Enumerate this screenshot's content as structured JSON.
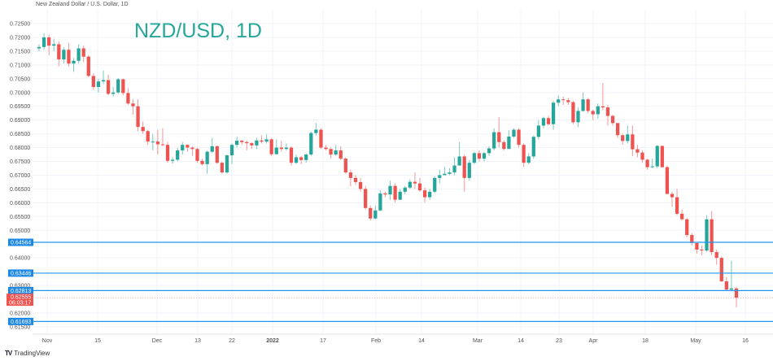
{
  "header": {
    "symbol_description": "New Zealand Dollar / U.S. Dollar, 1D"
  },
  "footer": {
    "brand": "TradingView",
    "logo_icon": "tradingview-logo-icon"
  },
  "chart_data": {
    "type": "candlestick",
    "title": "NZD/USD, 1D",
    "ylim": [
      0.6135,
      0.7275
    ],
    "grid": true,
    "y_ticks": [
      "0.72500",
      "0.72000",
      "0.71500",
      "0.71000",
      "0.70500",
      "0.70000",
      "0.69500",
      "0.69000",
      "0.68500",
      "0.68000",
      "0.67500",
      "0.67000",
      "0.66500",
      "0.66000",
      "0.65500",
      "0.65000",
      "0.64000",
      "0.63000",
      "0.62000",
      "0.61500"
    ],
    "x_ticks": [
      "Nov",
      "15",
      "Dec",
      "13",
      "22",
      "2022",
      "17",
      "Feb",
      "14",
      "Mar",
      "14",
      "23",
      "Apr",
      "18",
      "May",
      "16"
    ],
    "colors": {
      "up": "#26a69a",
      "down": "#ef5350",
      "level": "#2196f3",
      "title": "#26a69a"
    },
    "first_open": 0.716,
    "close": [
      0.7165,
      0.72,
      0.717,
      0.7175,
      0.712,
      0.7155,
      0.7105,
      0.7115,
      0.716,
      0.713,
      0.706,
      0.702,
      0.704,
      0.7045,
      0.6995,
      0.7,
      0.7048,
      0.6998,
      0.696,
      0.695,
      0.6875,
      0.686,
      0.6822,
      0.6822,
      0.6812,
      0.681,
      0.6752,
      0.6756,
      0.679,
      0.681,
      0.68,
      0.6795,
      0.6752,
      0.674,
      0.6785,
      0.6805,
      0.6745,
      0.671,
      0.6772,
      0.681,
      0.6825,
      0.682,
      0.6816,
      0.6808,
      0.6826,
      0.6822,
      0.683,
      0.6776,
      0.68,
      0.6795,
      0.68,
      0.6745,
      0.6765,
      0.6755,
      0.6775,
      0.6853,
      0.6865,
      0.68,
      0.6795,
      0.6775,
      0.679,
      0.676,
      0.671,
      0.669,
      0.6675,
      0.665,
      0.6581,
      0.6543,
      0.6572,
      0.6634,
      0.663,
      0.6661,
      0.6611,
      0.664,
      0.6655,
      0.6676,
      0.667,
      0.6645,
      0.662,
      0.664,
      0.669,
      0.67,
      0.6705,
      0.671,
      0.6735,
      0.6768,
      0.669,
      0.6745,
      0.678,
      0.676,
      0.678,
      0.6797,
      0.6856,
      0.682,
      0.6795,
      0.684,
      0.6865,
      0.681,
      0.6745,
      0.6768,
      0.6839,
      0.688,
      0.6907,
      0.6885,
      0.6963,
      0.6975,
      0.6972,
      0.6965,
      0.6892,
      0.6933,
      0.6975,
      0.6933,
      0.6921,
      0.695,
      0.6946,
      0.6915,
      0.6889,
      0.6845,
      0.6824,
      0.6848,
      0.6794,
      0.6782,
      0.6756,
      0.6729,
      0.6732,
      0.6806,
      0.6729,
      0.6632,
      0.662,
      0.656,
      0.654,
      0.6483,
      0.6454,
      0.643,
      0.6427,
      0.654,
      0.6421,
      0.64,
      0.6315,
      0.6285,
      0.6289,
      0.62555
    ],
    "high": [
      0.7175,
      0.7215,
      0.721,
      0.7195,
      0.7185,
      0.7165,
      0.718,
      0.7125,
      0.7175,
      0.717,
      0.7135,
      0.707,
      0.705,
      0.708,
      0.7065,
      0.702,
      0.7052,
      0.705,
      0.7015,
      0.6975,
      0.6975,
      0.6895,
      0.6865,
      0.685,
      0.6865,
      0.687,
      0.682,
      0.6765,
      0.68,
      0.682,
      0.6812,
      0.6805,
      0.68,
      0.676,
      0.679,
      0.6835,
      0.6808,
      0.675,
      0.6775,
      0.6815,
      0.684,
      0.6828,
      0.6825,
      0.682,
      0.6835,
      0.6845,
      0.6848,
      0.6835,
      0.683,
      0.6825,
      0.6815,
      0.6805,
      0.6775,
      0.677,
      0.678,
      0.6858,
      0.689,
      0.687,
      0.681,
      0.68,
      0.681,
      0.6805,
      0.6765,
      0.672,
      0.67,
      0.669,
      0.666,
      0.659,
      0.659,
      0.6645,
      0.664,
      0.668,
      0.667,
      0.665,
      0.666,
      0.6685,
      0.671,
      0.669,
      0.6655,
      0.665,
      0.6695,
      0.672,
      0.673,
      0.6725,
      0.6765,
      0.682,
      0.6775,
      0.6755,
      0.6785,
      0.679,
      0.6785,
      0.6805,
      0.687,
      0.691,
      0.6825,
      0.6862,
      0.687,
      0.687,
      0.6815,
      0.678,
      0.6845,
      0.69,
      0.6912,
      0.6915,
      0.697,
      0.699,
      0.6985,
      0.698,
      0.697,
      0.6945,
      0.7,
      0.698,
      0.6938,
      0.696,
      0.7035,
      0.6955,
      0.692,
      0.689,
      0.685,
      0.688,
      0.688,
      0.681,
      0.679,
      0.676,
      0.676,
      0.681,
      0.6808,
      0.6735,
      0.664,
      0.665,
      0.6575,
      0.6545,
      0.649,
      0.645,
      0.6445,
      0.6555,
      0.657,
      0.643,
      0.6405,
      0.633,
      0.639,
      0.6295
    ],
    "low": [
      0.715,
      0.7155,
      0.7135,
      0.715,
      0.7095,
      0.7105,
      0.7095,
      0.7075,
      0.7105,
      0.711,
      0.7055,
      0.701,
      0.7,
      0.703,
      0.699,
      0.6985,
      0.6995,
      0.699,
      0.6955,
      0.692,
      0.686,
      0.685,
      0.681,
      0.679,
      0.6775,
      0.6805,
      0.6745,
      0.6742,
      0.675,
      0.6775,
      0.6785,
      0.677,
      0.6745,
      0.6735,
      0.6705,
      0.678,
      0.674,
      0.6705,
      0.6705,
      0.674,
      0.68,
      0.681,
      0.679,
      0.6795,
      0.6795,
      0.6815,
      0.6815,
      0.677,
      0.678,
      0.6785,
      0.679,
      0.6735,
      0.674,
      0.674,
      0.6745,
      0.677,
      0.6845,
      0.6795,
      0.679,
      0.676,
      0.677,
      0.6755,
      0.6705,
      0.666,
      0.6665,
      0.664,
      0.6575,
      0.6535,
      0.654,
      0.657,
      0.662,
      0.661,
      0.66,
      0.661,
      0.663,
      0.665,
      0.665,
      0.664,
      0.66,
      0.661,
      0.6635,
      0.667,
      0.67,
      0.67,
      0.67,
      0.676,
      0.664,
      0.668,
      0.674,
      0.675,
      0.675,
      0.677,
      0.679,
      0.68,
      0.679,
      0.6825,
      0.6835,
      0.68,
      0.673,
      0.674,
      0.676,
      0.683,
      0.687,
      0.688,
      0.6865,
      0.695,
      0.6955,
      0.6955,
      0.6885,
      0.6875,
      0.693,
      0.6925,
      0.69,
      0.6905,
      0.6935,
      0.688,
      0.688,
      0.6835,
      0.681,
      0.6815,
      0.677,
      0.6765,
      0.6745,
      0.672,
      0.6725,
      0.6725,
      0.6728,
      0.663,
      0.6585,
      0.6555,
      0.6535,
      0.6475,
      0.6445,
      0.6415,
      0.641,
      0.6422,
      0.641,
      0.6375,
      0.6312,
      0.628,
      0.6282,
      0.622
    ],
    "levels": [
      {
        "label": "0.64564",
        "value": 0.64564
      },
      {
        "label": "0.63446",
        "value": 0.63446
      },
      {
        "label": "0.62813",
        "value": 0.62813
      },
      {
        "label": "0.61693",
        "value": 0.61693
      }
    ],
    "last_price": {
      "label": "0.62555",
      "value": 0.62555,
      "countdown": "06:03:17"
    }
  }
}
